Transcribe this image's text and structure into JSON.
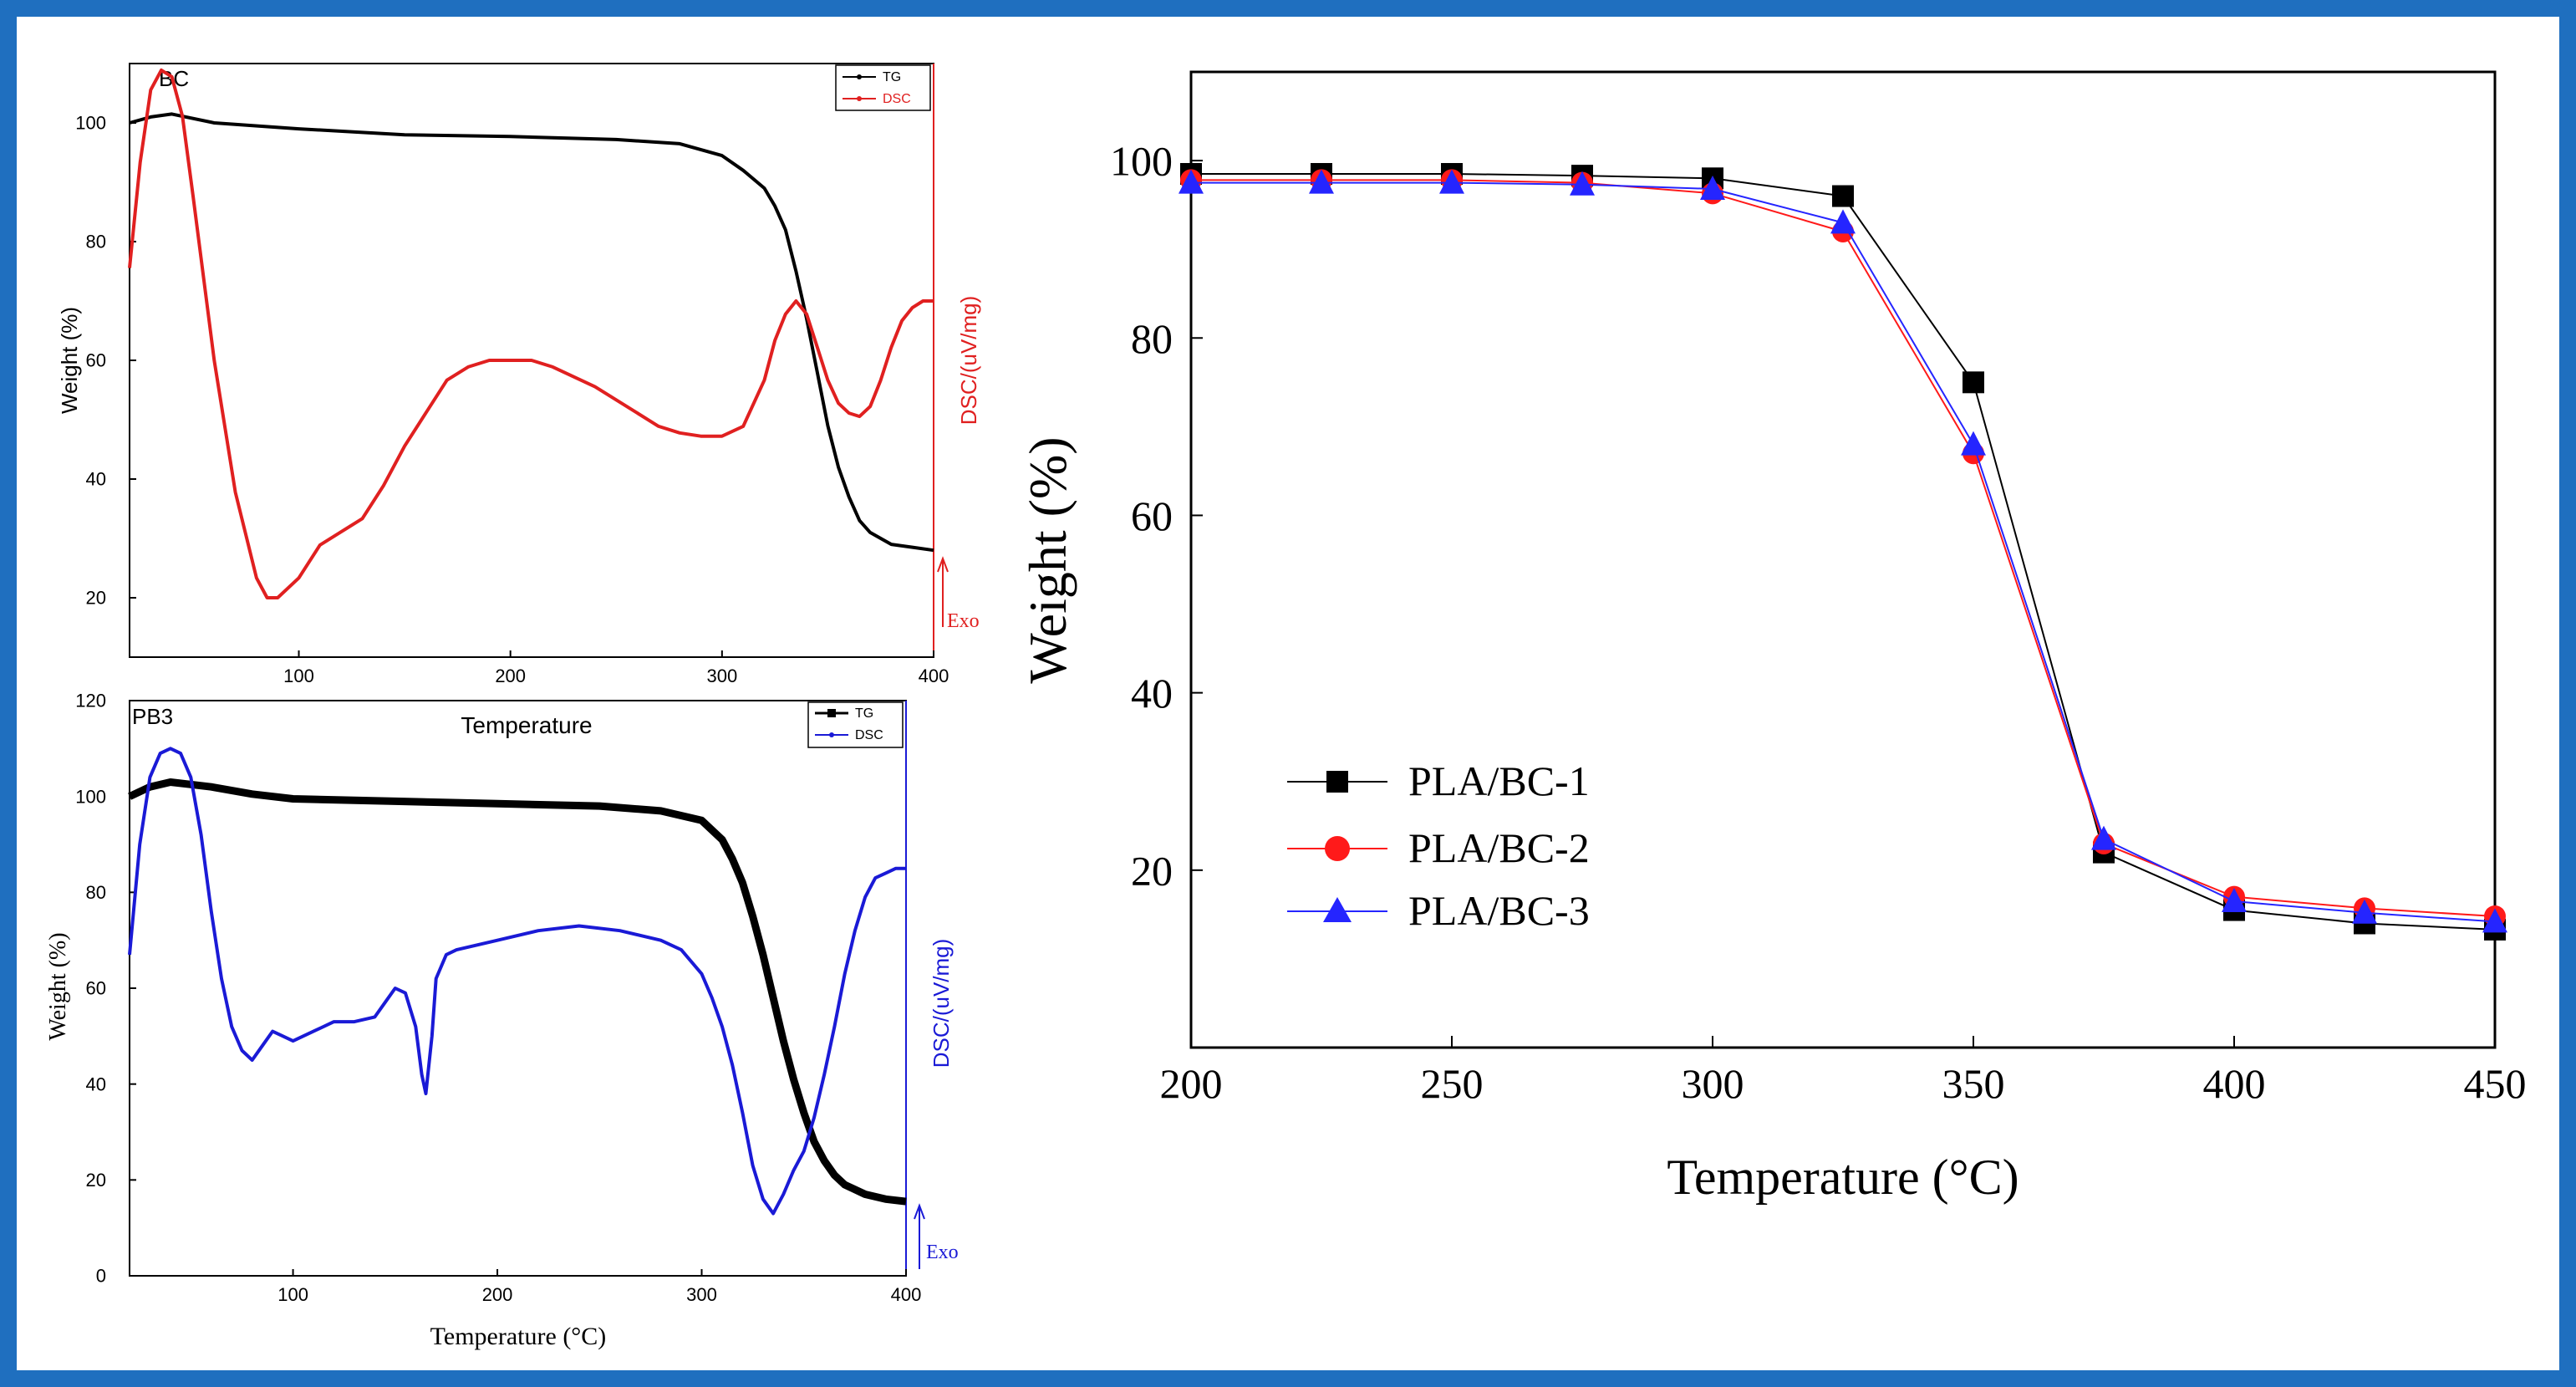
{
  "frame_color": "#1f6fbf",
  "chart_data": [
    {
      "id": "bc",
      "type": "line",
      "panel_label": "BC",
      "title": "",
      "xlabel": "",
      "ylabel": "Weight (%)",
      "y2label": "DSC/(uV/mg)",
      "xlim": [
        20,
        400
      ],
      "ylim": [
        10,
        110
      ],
      "xticks": [
        100,
        200,
        300,
        400
      ],
      "yticks": [
        20,
        40,
        60,
        80,
        100
      ],
      "exo_label": "Exo",
      "legend": [
        "TG",
        "DSC"
      ],
      "series": [
        {
          "name": "TG",
          "color": "#000000",
          "axis": "left",
          "x": [
            20,
            30,
            40,
            60,
            100,
            150,
            200,
            250,
            280,
            300,
            310,
            320,
            325,
            330,
            335,
            340,
            345,
            350,
            355,
            360,
            365,
            370,
            375,
            380,
            390,
            400
          ],
          "y": [
            100,
            101,
            101.5,
            100,
            99,
            98,
            97.7,
            97.2,
            96.5,
            94.5,
            92,
            89,
            86,
            82,
            75,
            67,
            58,
            49,
            42,
            37,
            33,
            31,
            30,
            29,
            28.5,
            28
          ]
        },
        {
          "name": "DSC",
          "color": "#e02020",
          "axis": "right",
          "x": [
            20,
            25,
            30,
            35,
            40,
            45,
            50,
            60,
            70,
            80,
            85,
            90,
            100,
            110,
            120,
            130,
            140,
            150,
            160,
            170,
            180,
            190,
            200,
            210,
            220,
            240,
            260,
            270,
            280,
            290,
            300,
            310,
            320,
            325,
            330,
            335,
            340,
            345,
            350,
            355,
            360,
            365,
            370,
            375,
            380,
            385,
            390,
            395,
            400
          ],
          "y": [
            69,
            85,
            96,
            99,
            98,
            92,
            80,
            55,
            35,
            22,
            19,
            19,
            22,
            27,
            29,
            31,
            36,
            42,
            47,
            52,
            54,
            55,
            55,
            55,
            54,
            51,
            47,
            45,
            44,
            43.5,
            43.5,
            45,
            52,
            58,
            62,
            64,
            62,
            57,
            52,
            48.5,
            47,
            46.5,
            48,
            52,
            57,
            61,
            63,
            64,
            64
          ]
        }
      ]
    },
    {
      "id": "pb3",
      "type": "line",
      "panel_label": "PB3",
      "title": "Temperature",
      "xlabel": "Temperature (°C)",
      "ylabel": "Weight (%)",
      "y2label": "DSC/(uV/mg)",
      "xlim": [
        20,
        400
      ],
      "ylim": [
        0,
        120
      ],
      "xticks": [
        100,
        200,
        300,
        400
      ],
      "yticks": [
        0,
        20,
        40,
        60,
        80,
        100,
        120
      ],
      "exo_label": "Exo",
      "legend": [
        "TG",
        "DSC"
      ],
      "series": [
        {
          "name": "TG",
          "color": "#000000",
          "axis": "left",
          "x": [
            20,
            25,
            30,
            40,
            50,
            60,
            80,
            100,
            150,
            200,
            250,
            280,
            300,
            310,
            315,
            320,
            325,
            330,
            335,
            340,
            345,
            350,
            355,
            360,
            365,
            370,
            380,
            390,
            400
          ],
          "y": [
            100,
            101,
            102,
            103,
            102.5,
            102,
            100.5,
            99.5,
            99,
            98.5,
            98,
            97,
            95,
            91,
            87,
            82,
            75,
            67,
            58,
            49,
            41,
            34,
            28,
            24,
            21,
            19,
            17,
            16,
            15.5
          ]
        },
        {
          "name": "DSC",
          "color": "#1a1ad6",
          "axis": "right",
          "x": [
            20,
            25,
            30,
            35,
            40,
            45,
            50,
            55,
            60,
            65,
            70,
            75,
            80,
            85,
            90,
            95,
            100,
            110,
            120,
            130,
            140,
            145,
            150,
            155,
            160,
            163,
            165,
            168,
            170,
            175,
            180,
            200,
            220,
            240,
            260,
            280,
            290,
            300,
            305,
            310,
            315,
            320,
            325,
            330,
            335,
            340,
            345,
            350,
            355,
            360,
            365,
            370,
            375,
            380,
            385,
            390,
            395,
            400
          ],
          "y": [
            67,
            90,
            104,
            109,
            110,
            109,
            104,
            92,
            76,
            62,
            52,
            47,
            45,
            48,
            51,
            50,
            49,
            51,
            53,
            53,
            54,
            57,
            60,
            59,
            52,
            42,
            38,
            50,
            62,
            67,
            68,
            70,
            72,
            73,
            72,
            70,
            68,
            63,
            58,
            52,
            44,
            34,
            23,
            16,
            13,
            17,
            22,
            26,
            33,
            42,
            52,
            63,
            72,
            79,
            83,
            84,
            85,
            85
          ]
        }
      ]
    },
    {
      "id": "pla",
      "type": "line",
      "panel_label": "",
      "title": "",
      "xlabel": "Temperature (°C)",
      "ylabel": "Weight (%)",
      "xlim": [
        200,
        450
      ],
      "ylim": [
        0,
        110
      ],
      "xticks": [
        200,
        250,
        300,
        350,
        400,
        450
      ],
      "yticks": [
        20,
        40,
        60,
        80,
        100
      ],
      "legend_position": "bottom-left",
      "series": [
        {
          "name": "PLA/BC-1",
          "color": "#000000",
          "marker": "square",
          "x": [
            200,
            225,
            250,
            275,
            300,
            325,
            350,
            375,
            400,
            425,
            450
          ],
          "y": [
            98.5,
            98.5,
            98.5,
            98.3,
            98,
            96,
            75,
            22,
            15.5,
            14,
            13.3
          ]
        },
        {
          "name": "PLA/BC-2",
          "color": "#ff1a1a",
          "marker": "circle",
          "x": [
            200,
            225,
            250,
            275,
            300,
            325,
            350,
            375,
            400,
            425,
            450
          ],
          "y": [
            97.8,
            97.8,
            97.8,
            97.5,
            96.3,
            92,
            67,
            23,
            17,
            15.7,
            14.8
          ]
        },
        {
          "name": "PLA/BC-3",
          "color": "#2525ff",
          "marker": "triangle",
          "x": [
            200,
            225,
            250,
            275,
            300,
            325,
            350,
            375,
            400,
            425,
            450
          ],
          "y": [
            97.5,
            97.5,
            97.5,
            97.3,
            96.8,
            93,
            68,
            23.5,
            16.5,
            15.2,
            14.2
          ]
        }
      ]
    }
  ]
}
